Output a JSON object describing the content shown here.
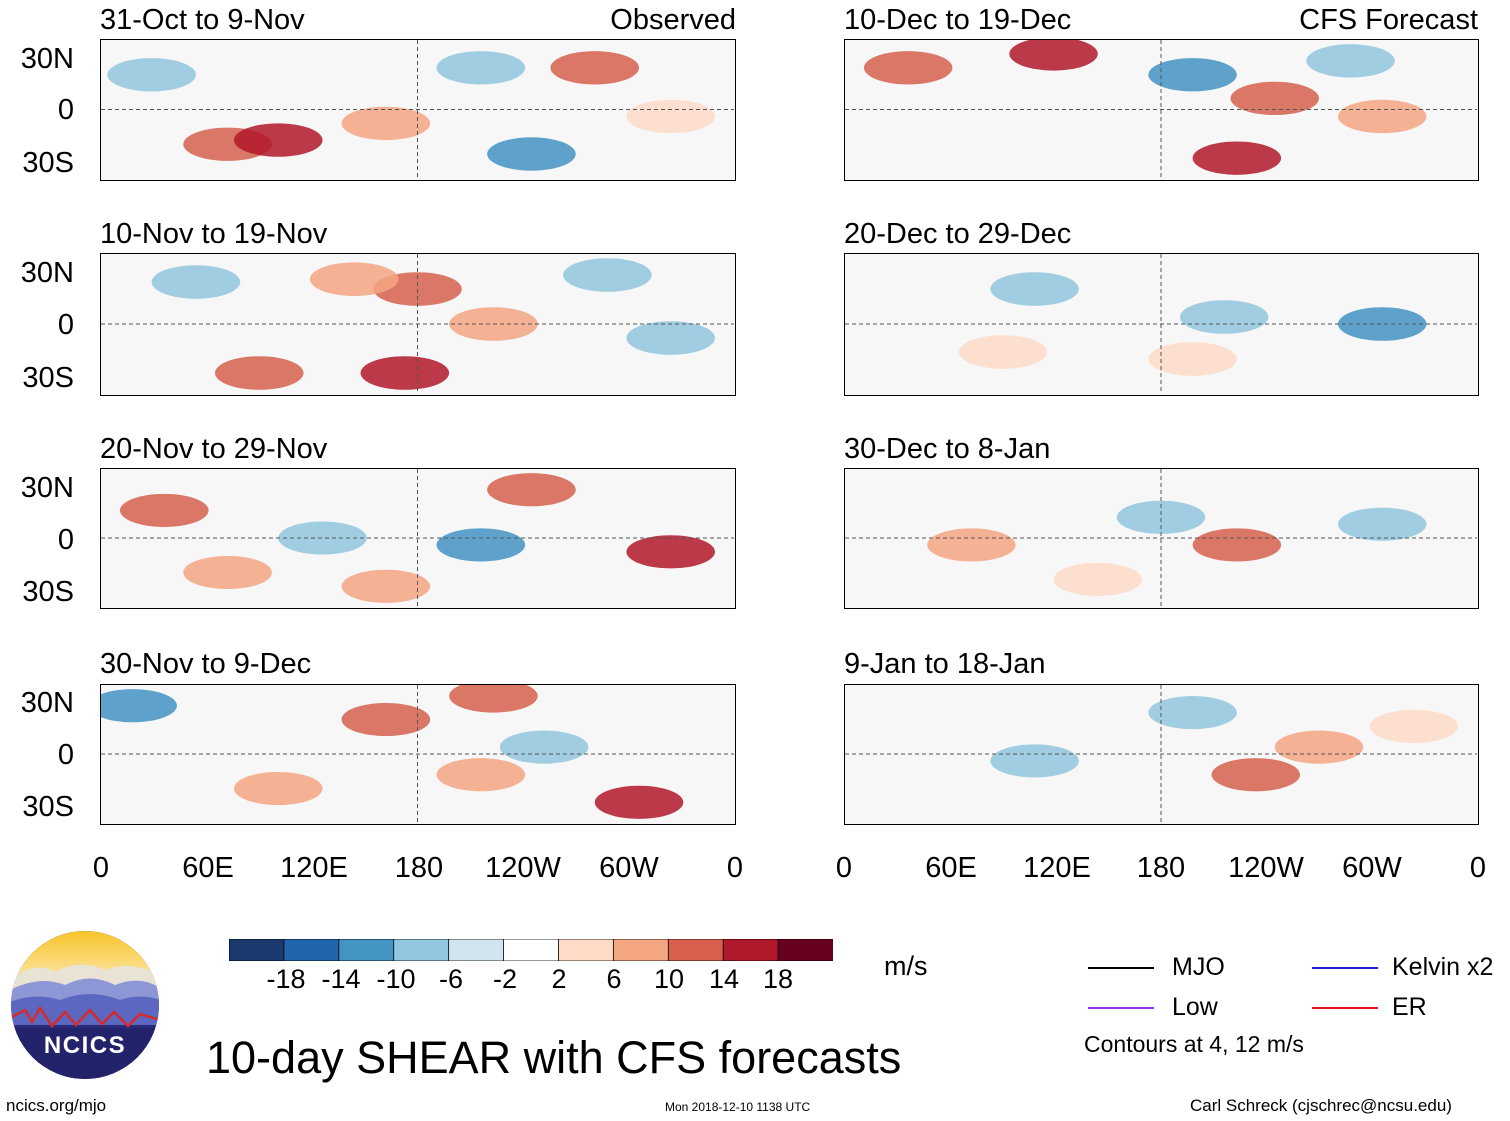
{
  "headers": {
    "left": "Observed",
    "right": "CFS Forecast"
  },
  "panels_left": [
    {
      "title": "31-Oct to 9-Nov"
    },
    {
      "title": "10-Nov to 19-Nov"
    },
    {
      "title": "20-Nov to 29-Nov"
    },
    {
      "title": "30-Nov to 9-Dec"
    }
  ],
  "panels_right": [
    {
      "title": "10-Dec to 19-Dec"
    },
    {
      "title": "20-Dec to 29-Dec"
    },
    {
      "title": "30-Dec to 8-Jan"
    },
    {
      "title": "9-Jan to 18-Jan"
    }
  ],
  "lat_labels": [
    "30N",
    "0",
    "30S"
  ],
  "lon_labels": [
    "0",
    "60E",
    "120E",
    "180",
    "120W",
    "60W",
    "0"
  ],
  "colorbar": {
    "unit": "m/s",
    "tick_labels": [
      "-18",
      "-14",
      "-10",
      "-6",
      "-2",
      "2",
      "6",
      "10",
      "14",
      "18"
    ],
    "colors": [
      "#1a3a6e",
      "#2166ac",
      "#4393c3",
      "#92c5de",
      "#d1e5f0",
      "#ffffff",
      "#fddbc7",
      "#f4a582",
      "#d6604d",
      "#b2182b",
      "#67001f"
    ]
  },
  "legend": {
    "items": [
      {
        "label": "MJO",
        "color": "#000000"
      },
      {
        "label": "Kelvin x2",
        "color": "#1f1fd6"
      },
      {
        "label": "Low",
        "color": "#9b30e8"
      },
      {
        "label": "ER",
        "color": "#e31a1c"
      }
    ],
    "contours_note": "Contours at 4, 12 m/s"
  },
  "logo": {
    "text": "NCICS"
  },
  "title": "10-day SHEAR with CFS forecasts",
  "footer": {
    "left": "ncics.org/mjo",
    "center": "Mon 2018-12-10 1138 UTC",
    "right": "Carl Schreck (cjschrec@ncsu.edu)"
  }
}
